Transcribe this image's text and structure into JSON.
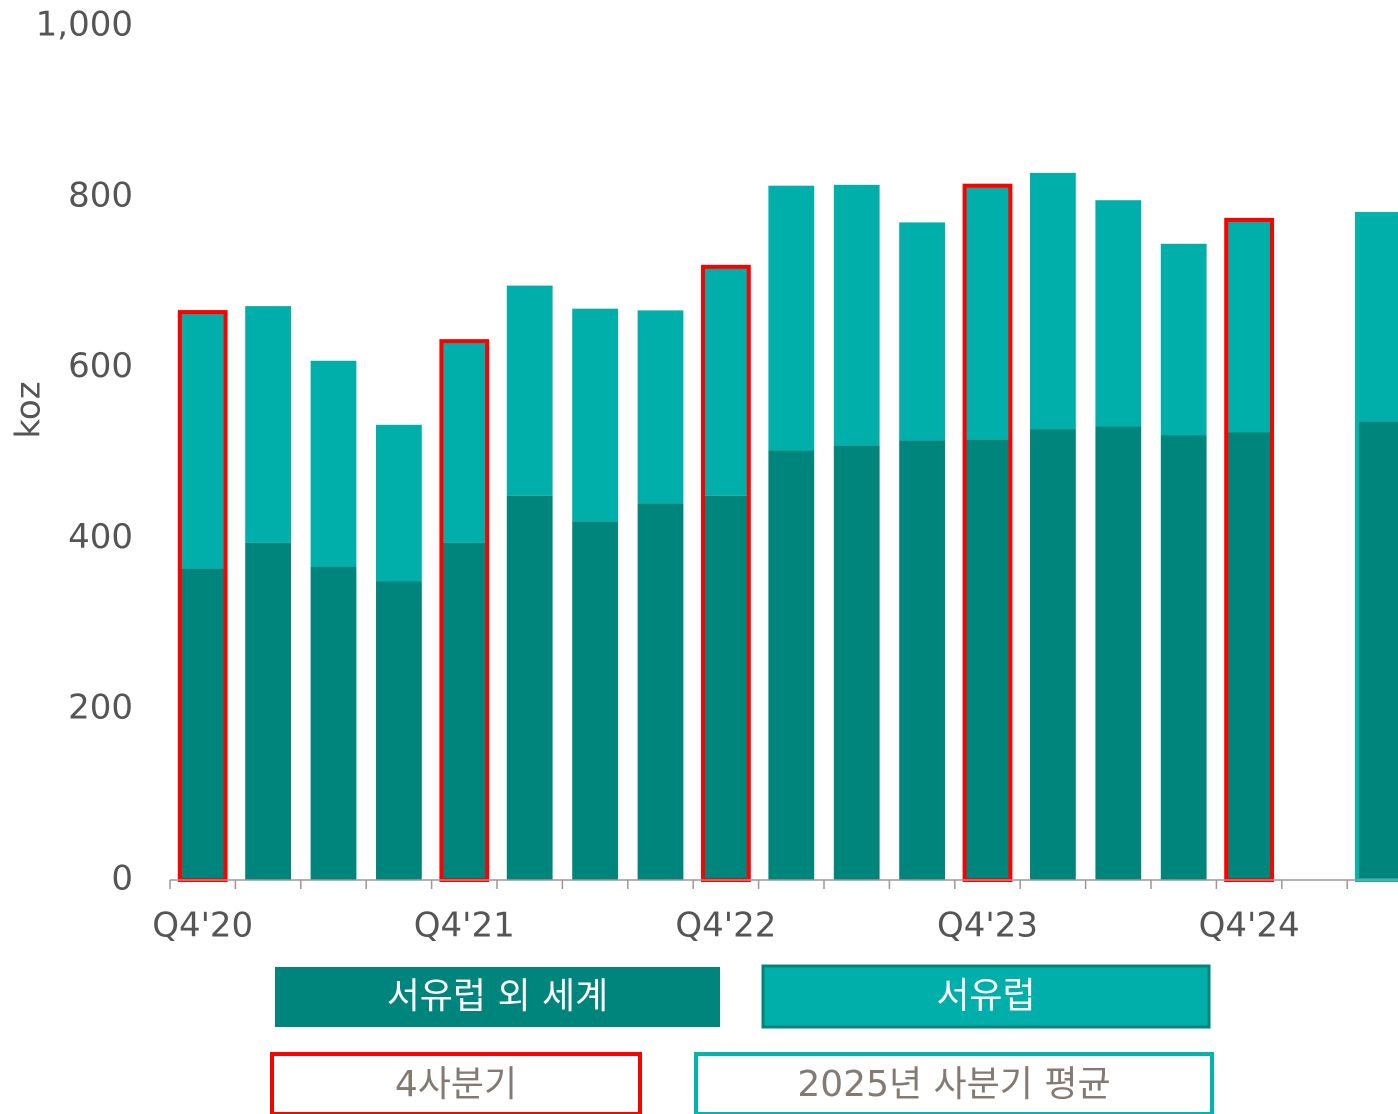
{
  "chart_data": {
    "type": "bar",
    "stacked": true,
    "y_label": "koz",
    "categories": [
      "Q4'20",
      null,
      null,
      null,
      "Q4'21",
      null,
      null,
      null,
      "Q4'22",
      null,
      null,
      null,
      "Q4'23",
      null,
      null,
      null,
      "Q4'24",
      null,
      null
    ],
    "series": [
      {
        "name": "서유럽 외 세계",
        "color": "#00857c",
        "values": [
          365,
          395,
          367,
          350,
          395,
          450,
          420,
          441,
          450,
          503,
          509,
          515,
          516,
          528,
          531,
          521,
          524,
          null,
          537
        ]
      },
      {
        "name": "서유럽",
        "color": "#00afa9",
        "values": [
          300,
          277,
          241,
          183,
          236,
          246,
          249,
          226,
          268,
          310,
          305,
          255,
          297,
          300,
          265,
          224,
          249,
          null,
          243
        ]
      }
    ],
    "outline_legend": [
      {
        "name": "4사분기",
        "color": "#ff0000"
      },
      {
        "name": "2025년 사분기 평균",
        "color": "#00b5ae"
      }
    ],
    "ylim": [
      0,
      1000
    ],
    "yticks": [
      0,
      200,
      400,
      600,
      800,
      {
        "value": 1000,
        "label": "1,000"
      }
    ],
    "grid": false
  }
}
